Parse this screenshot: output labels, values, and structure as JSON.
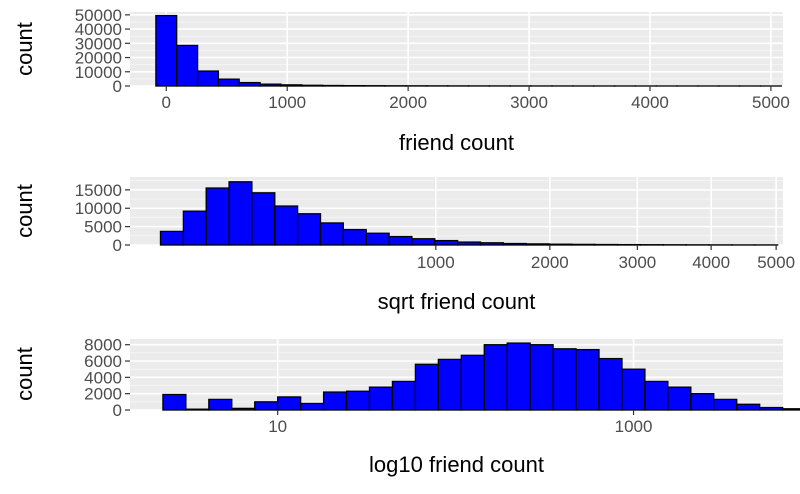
{
  "colors": {
    "bar_fill": "#0000ff",
    "bar_stroke": "#000000",
    "panel_background": "#ebebeb",
    "grid_major": "#ffffff",
    "grid_minor": "#f5f5f5",
    "tick_text": "#4d4d4d"
  },
  "chart_data": [
    {
      "type": "bar",
      "variant": "histogram",
      "xlabel": "friend count",
      "ylabel": "count",
      "x_scale": "linear",
      "xlim": [
        -300,
        5100
      ],
      "ylim": [
        0,
        52000
      ],
      "x_ticks": [
        {
          "value": 0,
          "label": "0"
        },
        {
          "value": 1000,
          "label": "1000"
        },
        {
          "value": 2000,
          "label": "2000"
        },
        {
          "value": 3000,
          "label": "3000"
        },
        {
          "value": 4000,
          "label": "4000"
        },
        {
          "value": 5000,
          "label": "5000"
        }
      ],
      "y_ticks": [
        {
          "value": 0,
          "label": "0"
        },
        {
          "value": 10000,
          "label": "10000"
        },
        {
          "value": 20000,
          "label": "20000"
        },
        {
          "value": 30000,
          "label": "30000"
        },
        {
          "value": 40000,
          "label": "40000"
        },
        {
          "value": 50000,
          "label": "50000"
        }
      ],
      "grid": true,
      "bins": [
        {
          "x0": -86,
          "x1": 86,
          "count": 49500
        },
        {
          "x0": 86,
          "x1": 259,
          "count": 28500
        },
        {
          "x0": 259,
          "x1": 431,
          "count": 10500
        },
        {
          "x0": 431,
          "x1": 603,
          "count": 4800
        },
        {
          "x0": 603,
          "x1": 776,
          "count": 2400
        },
        {
          "x0": 776,
          "x1": 948,
          "count": 1300
        },
        {
          "x0": 948,
          "x1": 1121,
          "count": 800
        },
        {
          "x0": 1121,
          "x1": 1293,
          "count": 500
        },
        {
          "x0": 1293,
          "x1": 1466,
          "count": 350
        },
        {
          "x0": 1466,
          "x1": 1638,
          "count": 250
        },
        {
          "x0": 1638,
          "x1": 1810,
          "count": 200
        },
        {
          "x0": 1810,
          "x1": 1983,
          "count": 150
        },
        {
          "x0": 1983,
          "x1": 2155,
          "count": 120
        },
        {
          "x0": 2155,
          "x1": 2328,
          "count": 100
        },
        {
          "x0": 2328,
          "x1": 2500,
          "count": 80
        },
        {
          "x0": 2500,
          "x1": 2672,
          "count": 60
        },
        {
          "x0": 2672,
          "x1": 2845,
          "count": 50
        },
        {
          "x0": 2845,
          "x1": 3017,
          "count": 40
        },
        {
          "x0": 3017,
          "x1": 3190,
          "count": 30
        },
        {
          "x0": 3190,
          "x1": 3362,
          "count": 25
        },
        {
          "x0": 3362,
          "x1": 3534,
          "count": 20
        },
        {
          "x0": 3534,
          "x1": 3707,
          "count": 18
        },
        {
          "x0": 3707,
          "x1": 3879,
          "count": 15
        },
        {
          "x0": 3879,
          "x1": 4052,
          "count": 12
        },
        {
          "x0": 4052,
          "x1": 4224,
          "count": 10
        },
        {
          "x0": 4224,
          "x1": 4397,
          "count": 9
        },
        {
          "x0": 4397,
          "x1": 4569,
          "count": 8
        },
        {
          "x0": 4569,
          "x1": 4741,
          "count": 7
        },
        {
          "x0": 4741,
          "x1": 4914,
          "count": 6
        },
        {
          "x0": 4914,
          "x1": 5086,
          "count": 5
        }
      ]
    },
    {
      "type": "bar",
      "variant": "histogram",
      "xlabel": "sqrt friend count",
      "ylabel": "count",
      "x_scale": "sqrt",
      "xlim": [
        -3.5,
        71.5
      ],
      "ylim": [
        0,
        18500
      ],
      "x_ticks": [
        {
          "value": 1000,
          "label": "1000"
        },
        {
          "value": 2000,
          "label": "2000"
        },
        {
          "value": 3000,
          "label": "3000"
        },
        {
          "value": 4000,
          "label": "4000"
        },
        {
          "value": 5000,
          "label": "5000"
        }
      ],
      "y_ticks": [
        {
          "value": 0,
          "label": "0"
        },
        {
          "value": 5000,
          "label": "5000"
        },
        {
          "value": 10000,
          "label": "10000"
        },
        {
          "value": 15000,
          "label": "15000"
        }
      ],
      "grid": true,
      "bins": [
        {
          "x0": 0,
          "x1": 2.63,
          "count": 3700
        },
        {
          "x0": 2.63,
          "x1": 5.25,
          "count": 9200
        },
        {
          "x0": 5.25,
          "x1": 7.88,
          "count": 15500
        },
        {
          "x0": 7.88,
          "x1": 10.5,
          "count": 17200
        },
        {
          "x0": 10.5,
          "x1": 13.13,
          "count": 14200
        },
        {
          "x0": 13.13,
          "x1": 15.75,
          "count": 10600
        },
        {
          "x0": 15.75,
          "x1": 18.38,
          "count": 8500
        },
        {
          "x0": 18.38,
          "x1": 21.0,
          "count": 6000
        },
        {
          "x0": 21.0,
          "x1": 23.63,
          "count": 4200
        },
        {
          "x0": 23.63,
          "x1": 26.26,
          "count": 3200
        },
        {
          "x0": 26.26,
          "x1": 28.88,
          "count": 2300
        },
        {
          "x0": 28.88,
          "x1": 31.51,
          "count": 1700
        },
        {
          "x0": 31.51,
          "x1": 34.13,
          "count": 1200
        },
        {
          "x0": 34.13,
          "x1": 36.76,
          "count": 800
        },
        {
          "x0": 36.76,
          "x1": 39.38,
          "count": 600
        },
        {
          "x0": 39.38,
          "x1": 42.01,
          "count": 400
        },
        {
          "x0": 42.01,
          "x1": 44.63,
          "count": 300
        },
        {
          "x0": 44.63,
          "x1": 47.26,
          "count": 220
        },
        {
          "x0": 47.26,
          "x1": 49.89,
          "count": 170
        },
        {
          "x0": 49.89,
          "x1": 52.51,
          "count": 130
        },
        {
          "x0": 52.51,
          "x1": 55.14,
          "count": 100
        },
        {
          "x0": 55.14,
          "x1": 57.76,
          "count": 80
        },
        {
          "x0": 57.76,
          "x1": 60.39,
          "count": 60
        },
        {
          "x0": 60.39,
          "x1": 63.01,
          "count": 45
        },
        {
          "x0": 63.01,
          "x1": 65.64,
          "count": 35
        },
        {
          "x0": 65.64,
          "x1": 68.26,
          "count": 25
        },
        {
          "x0": 68.26,
          "x1": 70.89,
          "count": 20
        }
      ]
    },
    {
      "type": "bar",
      "variant": "histogram",
      "xlabel": "log10 friend count",
      "ylabel": "count",
      "x_scale": "log10",
      "xlim": [
        0.17,
        3.84
      ],
      "ylim": [
        0,
        8700
      ],
      "x_ticks": [
        {
          "value": 10,
          "label": "10"
        },
        {
          "value": 1000,
          "label": "1000"
        }
      ],
      "y_ticks": [
        {
          "value": 0,
          "label": "0"
        },
        {
          "value": 2000,
          "label": "2000"
        },
        {
          "value": 4000,
          "label": "4000"
        },
        {
          "value": 6000,
          "label": "6000"
        },
        {
          "value": 8000,
          "label": "8000"
        }
      ],
      "grid": true,
      "bins": [
        {
          "x0": 0.355,
          "x1": 0.484,
          "count": 1900
        },
        {
          "x0": 0.484,
          "x1": 0.613,
          "count": 100
        },
        {
          "x0": 0.613,
          "x1": 0.742,
          "count": 1300
        },
        {
          "x0": 0.742,
          "x1": 0.871,
          "count": 200
        },
        {
          "x0": 0.871,
          "x1": 1.0,
          "count": 1000
        },
        {
          "x0": 1.0,
          "x1": 1.129,
          "count": 1600
        },
        {
          "x0": 1.129,
          "x1": 1.258,
          "count": 800
        },
        {
          "x0": 1.258,
          "x1": 1.387,
          "count": 2200
        },
        {
          "x0": 1.387,
          "x1": 1.516,
          "count": 2300
        },
        {
          "x0": 1.516,
          "x1": 1.645,
          "count": 2800
        },
        {
          "x0": 1.645,
          "x1": 1.774,
          "count": 3500
        },
        {
          "x0": 1.774,
          "x1": 1.903,
          "count": 5600
        },
        {
          "x0": 1.903,
          "x1": 2.032,
          "count": 6200
        },
        {
          "x0": 2.032,
          "x1": 2.161,
          "count": 6700
        },
        {
          "x0": 2.161,
          "x1": 2.29,
          "count": 8000
        },
        {
          "x0": 2.29,
          "x1": 2.419,
          "count": 8200
        },
        {
          "x0": 2.419,
          "x1": 2.548,
          "count": 8000
        },
        {
          "x0": 2.548,
          "x1": 2.677,
          "count": 7500
        },
        {
          "x0": 2.677,
          "x1": 2.806,
          "count": 7400
        },
        {
          "x0": 2.806,
          "x1": 2.935,
          "count": 6300
        },
        {
          "x0": 2.935,
          "x1": 3.064,
          "count": 5000
        },
        {
          "x0": 3.064,
          "x1": 3.193,
          "count": 3500
        },
        {
          "x0": 3.193,
          "x1": 3.322,
          "count": 2800
        },
        {
          "x0": 3.322,
          "x1": 3.451,
          "count": 2000
        },
        {
          "x0": 3.451,
          "x1": 3.58,
          "count": 1300
        },
        {
          "x0": 3.58,
          "x1": 3.709,
          "count": 700
        },
        {
          "x0": 3.709,
          "x1": 3.838,
          "count": 300
        },
        {
          "x0": 3.838,
          "x1": 3.967,
          "count": 150
        },
        {
          "x0": 3.967,
          "x1": 4.096,
          "count": 80
        },
        {
          "x0": 4.096,
          "x1": 4.225,
          "count": 40
        }
      ]
    }
  ]
}
